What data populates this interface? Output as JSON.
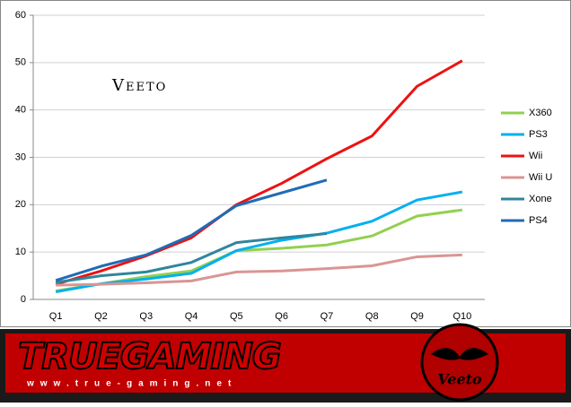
{
  "chart_data": {
    "type": "line",
    "annotation": "Veeto",
    "categories": [
      "Q1",
      "Q2",
      "Q3",
      "Q4",
      "Q5",
      "Q6",
      "Q7",
      "Q8",
      "Q9",
      "Q10"
    ],
    "series": [
      {
        "name": "X360",
        "color": "#92d050",
        "values": [
          1.8,
          3.3,
          4.8,
          6.0,
          10.3,
          10.8,
          11.5,
          13.4,
          17.6,
          18.9
        ]
      },
      {
        "name": "PS3",
        "color": "#00b0f0",
        "values": [
          1.6,
          3.3,
          4.3,
          5.5,
          10.3,
          12.5,
          14.0,
          16.5,
          21.0,
          22.7
        ]
      },
      {
        "name": "Wii",
        "color": "#ee1111",
        "values": [
          3.2,
          6.0,
          9.2,
          13.0,
          20.0,
          24.5,
          29.7,
          34.5,
          45.0,
          50.4
        ]
      },
      {
        "name": "Wii U",
        "color": "#d99594",
        "values": [
          3.0,
          3.2,
          3.5,
          3.9,
          5.8,
          6.0,
          6.5,
          7.1,
          9.0,
          9.4
        ]
      },
      {
        "name": "Xone",
        "color": "#31859c",
        "values": [
          3.6,
          5.0,
          5.8,
          7.8,
          12.0,
          13.0,
          13.9,
          null,
          null,
          null
        ]
      },
      {
        "name": "PS4",
        "color": "#1f6cb5",
        "values": [
          4.0,
          7.0,
          9.4,
          13.5,
          19.8,
          22.5,
          25.2,
          null,
          null,
          null
        ]
      }
    ],
    "ylim": [
      0,
      60
    ],
    "yticks": [
      0,
      10,
      20,
      30,
      40,
      50,
      60
    ],
    "grid": true,
    "legend": "right"
  },
  "banner": {
    "title": "TRUEGAMING",
    "url": "www.true-gaming.net",
    "signature": "Veeto"
  }
}
